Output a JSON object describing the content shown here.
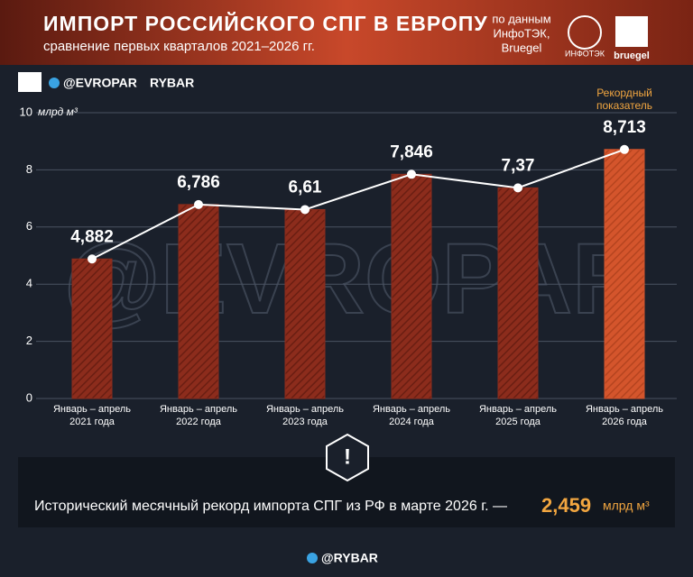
{
  "header": {
    "title": "ИМПОРТ РОССИЙСКОГО СПГ В ЕВРОПУ",
    "subtitle": "сравнение первых кварталов 2021–2026 гг.",
    "source": [
      "по данным",
      "ИнфоТЭК,",
      "Bruegel"
    ],
    "logos": [
      "ИНФОТЭК",
      "bruegel"
    ]
  },
  "handles": [
    "@EVROPAR",
    "RYBAR"
  ],
  "chart_data": {
    "type": "bar",
    "y_unit": "млрд м³",
    "categories": [
      [
        "Январь – апрель",
        "2021 года"
      ],
      [
        "Январь – апрель",
        "2022 года"
      ],
      [
        "Январь – апрель",
        "2023 года"
      ],
      [
        "Январь – апрель",
        "2024 года"
      ],
      [
        "Январь – апрель",
        "2025 года"
      ],
      [
        "Январь – апрель",
        "2026 года"
      ]
    ],
    "values": [
      4.882,
      6.786,
      6.61,
      7.846,
      7.37,
      8.713
    ],
    "value_labels": [
      "4,882",
      "6,786",
      "6,61",
      "7,846",
      "7,37",
      "8,713"
    ],
    "color": "#8c2c1c",
    "highlight_color": "#d4552c",
    "line_color": "#ffffff",
    "ylim": [
      0,
      10
    ],
    "yticks": [
      0,
      2,
      4,
      6,
      8,
      10
    ],
    "grid": true,
    "annotation": [
      "Рекордный",
      "показатель"
    ]
  },
  "note": {
    "text": "Исторический месячный рекорд импорта СПГ из РФ в марте 2026 г. —",
    "value": "2,459",
    "unit": "млрд м³"
  },
  "footer": "@RYBAR"
}
